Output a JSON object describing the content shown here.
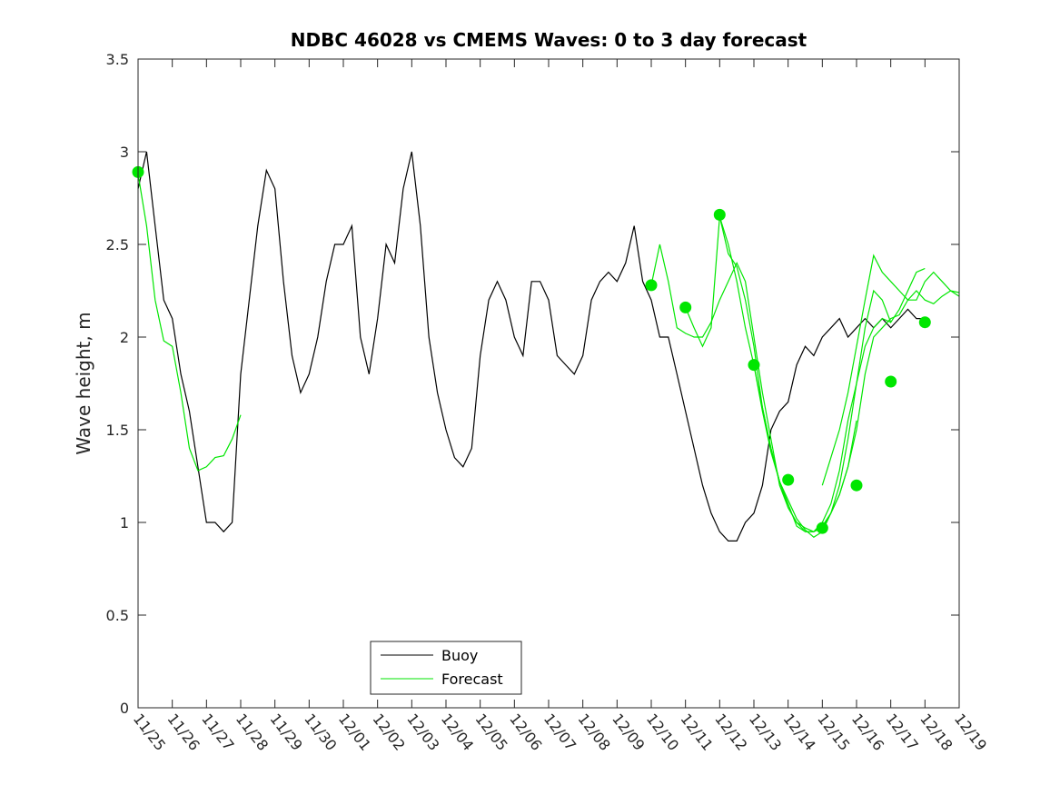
{
  "chart_data": {
    "type": "line",
    "title": "NDBC 46028 vs CMEMS Waves: 0 to 3 day forecast",
    "xlabel": "",
    "ylabel": "Wave height, m",
    "xlim": [
      0,
      24
    ],
    "ylim": [
      0,
      3.5
    ],
    "x_tick_labels": [
      "11/25",
      "11/26",
      "11/27",
      "11/28",
      "11/29",
      "11/30",
      "12/01",
      "12/02",
      "12/03",
      "12/04",
      "12/05",
      "12/06",
      "12/07",
      "12/08",
      "12/09",
      "12/10",
      "12/11",
      "12/12",
      "12/13",
      "12/14",
      "12/15",
      "12/16",
      "12/17",
      "12/18",
      "12/19"
    ],
    "y_ticks": [
      0,
      0.5,
      1,
      1.5,
      2,
      2.5,
      3,
      3.5
    ],
    "y_tick_labels": [
      "0",
      "0.5",
      "1",
      "1.5",
      "2",
      "2.5",
      "3",
      "3.5"
    ],
    "grid": false,
    "legend_position": "bottom-center",
    "colors": {
      "buoy": "#000000",
      "forecast": "#00e600"
    },
    "series": [
      {
        "name": "Buoy",
        "x": [
          0,
          0.25,
          0.5,
          0.75,
          1,
          1.25,
          1.5,
          1.75,
          2,
          2.25,
          2.5,
          2.75,
          3,
          3.25,
          3.5,
          3.75,
          4,
          4.25,
          4.5,
          4.75,
          5,
          5.25,
          5.5,
          5.75,
          6,
          6.25,
          6.5,
          6.75,
          7,
          7.25,
          7.5,
          7.75,
          8,
          8.25,
          8.5,
          8.75,
          9,
          9.25,
          9.5,
          9.75,
          10,
          10.25,
          10.5,
          10.75,
          11,
          11.25,
          11.5,
          11.75,
          12,
          12.25,
          12.5,
          12.75,
          13,
          13.25,
          13.5,
          13.75,
          14,
          14.25,
          14.5,
          14.75,
          15,
          15.25,
          15.5,
          15.75,
          16,
          16.25,
          16.5,
          16.75,
          17,
          17.25,
          17.5,
          17.75,
          18,
          18.25,
          18.5,
          18.75,
          19,
          19.25,
          19.5,
          19.75,
          20,
          20.25,
          20.5,
          20.75,
          21,
          21.25,
          21.5,
          21.75,
          22,
          22.25,
          22.5,
          22.75,
          23
        ],
        "y": [
          2.8,
          3.0,
          2.6,
          2.2,
          2.1,
          1.8,
          1.6,
          1.3,
          1.0,
          1.0,
          0.95,
          1.0,
          1.8,
          2.2,
          2.6,
          2.9,
          2.8,
          2.3,
          1.9,
          1.7,
          1.8,
          2.0,
          2.3,
          2.5,
          2.5,
          2.6,
          2.0,
          1.8,
          2.1,
          2.5,
          2.4,
          2.8,
          3.0,
          2.6,
          2.0,
          1.7,
          1.5,
          1.35,
          1.3,
          1.4,
          1.9,
          2.2,
          2.3,
          2.2,
          2.0,
          1.9,
          2.3,
          2.3,
          2.2,
          1.9,
          1.85,
          1.8,
          1.9,
          2.2,
          2.3,
          2.35,
          2.3,
          2.4,
          2.6,
          2.3,
          2.2,
          2.0,
          2.0,
          1.8,
          1.6,
          1.4,
          1.2,
          1.05,
          0.95,
          0.9,
          0.9,
          1.0,
          1.05,
          1.2,
          1.5,
          1.6,
          1.65,
          1.85,
          1.95,
          1.9,
          2.0,
          2.05,
          2.1,
          2.0,
          2.05,
          2.1,
          2.05,
          2.1,
          2.05,
          2.1,
          2.15,
          2.1,
          2.1
        ]
      },
      {
        "name": "Forecast",
        "segments": [
          {
            "x": [
              0,
              0.25,
              0.5,
              0.75,
              1,
              1.25,
              1.5,
              1.75,
              2,
              2.25,
              2.5,
              2.75,
              3
            ],
            "y": [
              2.88,
              2.6,
              2.2,
              1.98,
              1.95,
              1.7,
              1.4,
              1.28,
              1.3,
              1.35,
              1.36,
              1.45,
              1.58
            ]
          },
          {
            "x": [
              15,
              15.25,
              15.5,
              15.75,
              16,
              16.25,
              16.5,
              16.75,
              17,
              17.25,
              17.5,
              17.75,
              18,
              18.25,
              18.5,
              18.75,
              19,
              19.25,
              19.5,
              19.75,
              20,
              20.25,
              20.5,
              20.75,
              21
            ],
            "y": [
              2.28,
              2.5,
              2.3,
              2.05,
              2.02,
              2.0,
              2.0,
              2.08,
              2.2,
              2.3,
              2.4,
              2.3,
              2.0,
              1.7,
              1.45,
              1.2,
              1.08,
              1.0,
              0.95,
              0.95,
              0.98,
              1.05,
              1.15,
              1.3,
              1.55
            ]
          },
          {
            "x": [
              16,
              16.25,
              16.5,
              16.75,
              17,
              17.25,
              17.5,
              17.75,
              18,
              18.25,
              18.5,
              18.75,
              19,
              19.25,
              19.5,
              19.75,
              20,
              20.25,
              20.5,
              20.75,
              21,
              21.25,
              21.5,
              21.75,
              22
            ],
            "y": [
              2.16,
              2.05,
              1.95,
              2.05,
              2.65,
              2.45,
              2.38,
              2.2,
              1.95,
              1.62,
              1.4,
              1.22,
              1.08,
              1.0,
              0.97,
              0.95,
              1.0,
              1.1,
              1.28,
              1.55,
              1.75,
              1.95,
              2.05,
              2.1,
              2.08
            ]
          },
          {
            "x": [
              17,
              17.25,
              17.5,
              17.75,
              18,
              18.25,
              18.5,
              18.75,
              19,
              19.25,
              19.5,
              19.75,
              20,
              20.25,
              20.5,
              20.75,
              21,
              21.25,
              21.5,
              21.75,
              22,
              22.25,
              22.5,
              22.75,
              23
            ],
            "y": [
              2.65,
              2.5,
              2.3,
              2.05,
              1.85,
              1.62,
              1.4,
              1.22,
              1.1,
              0.98,
              0.95,
              0.95,
              0.97,
              1.05,
              1.2,
              1.45,
              1.75,
              2.05,
              2.25,
              2.2,
              2.08,
              2.15,
              2.25,
              2.35,
              2.37
            ]
          },
          {
            "x": [
              18,
              18.25,
              18.5,
              18.75,
              19,
              19.25,
              19.5,
              19.75,
              20,
              20.25,
              20.5,
              20.75,
              21,
              21.25,
              21.5,
              21.75,
              22,
              22.25,
              22.5,
              22.75,
              23,
              23.25,
              23.5,
              23.75,
              24
            ],
            "y": [
              1.85,
              1.6,
              1.38,
              1.22,
              1.12,
              1.02,
              0.96,
              0.92,
              0.95,
              1.05,
              1.15,
              1.3,
              1.5,
              1.8,
              2.0,
              2.05,
              2.1,
              2.12,
              2.2,
              2.25,
              2.2,
              2.18,
              2.22,
              2.25,
              2.24
            ]
          },
          {
            "x": [
              20,
              20.25,
              20.5,
              20.75,
              21,
              21.25,
              21.5,
              21.75,
              22,
              22.25,
              22.5,
              22.75,
              23,
              23.25,
              23.5,
              23.75,
              24
            ],
            "y": [
              1.2,
              1.35,
              1.5,
              1.7,
              1.95,
              2.2,
              2.44,
              2.35,
              2.3,
              2.25,
              2.2,
              2.2,
              2.3,
              2.35,
              2.3,
              2.25,
              2.22
            ]
          }
        ],
        "markers": {
          "x": [
            0,
            15,
            16,
            17,
            18,
            19,
            20,
            21,
            22,
            23
          ],
          "y": [
            2.89,
            2.28,
            2.16,
            2.66,
            1.85,
            1.23,
            0.97,
            1.2,
            1.76,
            2.08
          ]
        }
      }
    ]
  }
}
